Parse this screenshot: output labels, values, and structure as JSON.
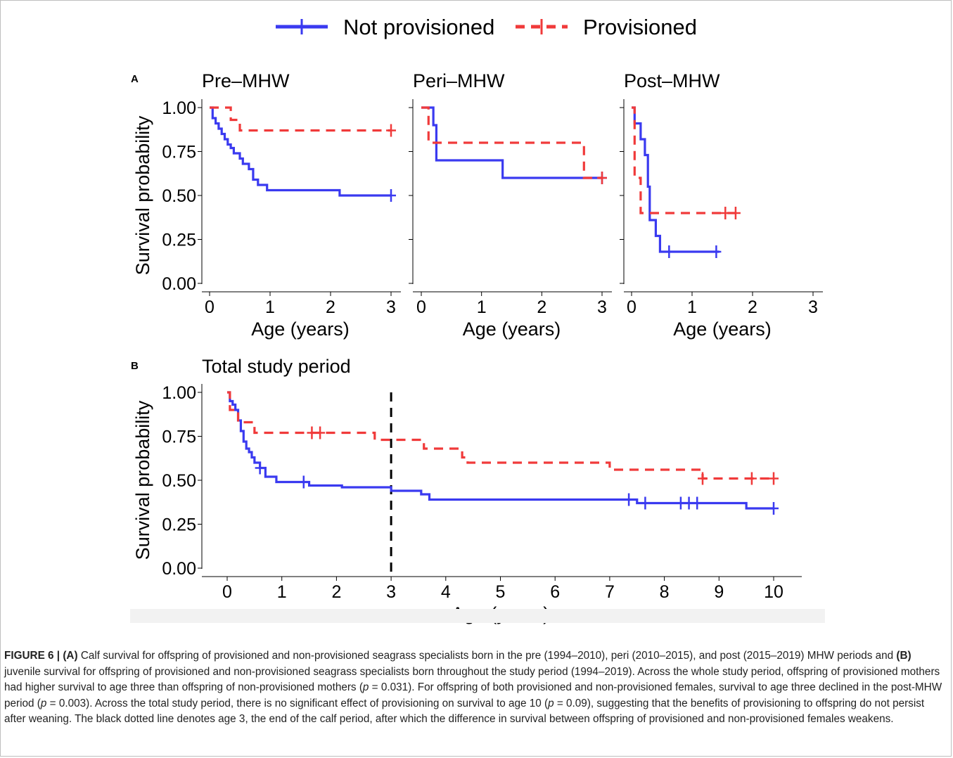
{
  "legend": {
    "items": [
      {
        "label": "Not provisioned",
        "color": "#3a3af0",
        "dash": "solid"
      },
      {
        "label": "Provisioned",
        "color": "#f03a3a",
        "dash": "dashed"
      }
    ]
  },
  "panel_a_label": "A",
  "panel_b_label": "B",
  "chart_data": [
    {
      "type": "line",
      "subtype": "kaplan-meier",
      "title": "Pre–MHW",
      "xlabel": "Age (years)",
      "ylabel": "Survival probability",
      "xlim": [
        0,
        3
      ],
      "ylim": [
        0,
        1
      ],
      "xticks": [
        "0",
        "1",
        "2",
        "3"
      ],
      "yticks": [
        "0.00",
        "0.25",
        "0.50",
        "0.75",
        "1.00"
      ],
      "series": [
        {
          "name": "Not provisioned",
          "x": [
            0,
            0.05,
            0.1,
            0.15,
            0.2,
            0.25,
            0.3,
            0.35,
            0.4,
            0.5,
            0.55,
            0.65,
            0.72,
            0.8,
            0.95,
            2.15,
            3.0
          ],
          "y": [
            1.0,
            0.94,
            0.91,
            0.88,
            0.85,
            0.82,
            0.79,
            0.77,
            0.74,
            0.71,
            0.68,
            0.65,
            0.59,
            0.56,
            0.53,
            0.5,
            0.5
          ],
          "censored": [
            3.0
          ]
        },
        {
          "name": "Provisioned",
          "x": [
            0,
            0.35,
            0.5,
            3.0
          ],
          "y": [
            1.0,
            0.93,
            0.87,
            0.87
          ],
          "censored": [
            3.0
          ]
        }
      ]
    },
    {
      "type": "line",
      "subtype": "kaplan-meier",
      "title": "Peri–MHW",
      "xlabel": "Age (years)",
      "ylabel": "",
      "xlim": [
        0,
        3
      ],
      "ylim": [
        0,
        1
      ],
      "xticks": [
        "0",
        "1",
        "2",
        "3"
      ],
      "series": [
        {
          "name": "Not provisioned",
          "x": [
            0,
            0.2,
            0.25,
            1.35,
            3.0
          ],
          "y": [
            1.0,
            0.9,
            0.7,
            0.6,
            0.6
          ],
          "censored": [
            3.0
          ]
        },
        {
          "name": "Provisioned",
          "x": [
            0,
            0.12,
            2.7,
            3.0
          ],
          "y": [
            1.0,
            0.8,
            0.6,
            0.6
          ],
          "censored": [
            3.0
          ]
        }
      ]
    },
    {
      "type": "line",
      "subtype": "kaplan-meier",
      "title": "Post–MHW",
      "xlabel": "Age (years)",
      "ylabel": "",
      "xlim": [
        0,
        3
      ],
      "ylim": [
        0,
        1
      ],
      "xticks": [
        "0",
        "1",
        "2",
        "3"
      ],
      "series": [
        {
          "name": "Not provisioned",
          "x": [
            0,
            0.05,
            0.15,
            0.22,
            0.27,
            0.3,
            0.4,
            0.47,
            1.45
          ],
          "y": [
            1.0,
            0.91,
            0.82,
            0.73,
            0.55,
            0.36,
            0.27,
            0.18,
            0.18
          ],
          "censored": [
            0.62,
            1.4
          ]
        },
        {
          "name": "Provisioned",
          "x": [
            0,
            0.05,
            0.15,
            1.75
          ],
          "y": [
            1.0,
            0.6,
            0.4,
            0.4
          ],
          "censored": [
            1.55,
            1.72
          ]
        }
      ]
    },
    {
      "type": "line",
      "subtype": "kaplan-meier",
      "title": "Total study period",
      "xlabel": "Age (years)",
      "ylabel": "Survival probability",
      "xlim": [
        0,
        10
      ],
      "ylim": [
        0,
        1
      ],
      "xticks": [
        "0",
        "1",
        "2",
        "3",
        "4",
        "5",
        "6",
        "7",
        "8",
        "9",
        "10"
      ],
      "yticks": [
        "0.00",
        "0.25",
        "0.50",
        "0.75",
        "1.00"
      ],
      "vline": {
        "x": 3,
        "style": "dashed",
        "color": "#000000"
      },
      "series": [
        {
          "name": "Not provisioned",
          "x": [
            0,
            0.05,
            0.1,
            0.15,
            0.2,
            0.25,
            0.3,
            0.35,
            0.4,
            0.45,
            0.5,
            0.6,
            0.7,
            0.9,
            1.5,
            2.1,
            3.0,
            3.55,
            3.7,
            7.5,
            9.5,
            10.0
          ],
          "y": [
            1.0,
            0.95,
            0.93,
            0.9,
            0.84,
            0.78,
            0.72,
            0.68,
            0.66,
            0.63,
            0.6,
            0.57,
            0.52,
            0.49,
            0.47,
            0.46,
            0.44,
            0.42,
            0.39,
            0.37,
            0.34,
            0.34
          ],
          "censored": [
            0.6,
            1.4,
            7.35,
            7.65,
            8.3,
            8.45,
            8.6,
            10.0
          ]
        },
        {
          "name": "Provisioned",
          "x": [
            0,
            0.05,
            0.2,
            0.5,
            2.0,
            2.7,
            3.0,
            3.6,
            4.3,
            4.4,
            7.0,
            8.7,
            10.0
          ],
          "y": [
            1.0,
            0.9,
            0.83,
            0.77,
            0.77,
            0.73,
            0.73,
            0.68,
            0.63,
            0.6,
            0.56,
            0.51,
            0.51
          ],
          "censored": [
            1.55,
            1.7,
            8.7,
            9.6,
            10.0
          ]
        }
      ]
    }
  ],
  "caption": {
    "fig_label": "FIGURE 6 | ",
    "a_label": "(A)",
    "text1": " Calf survival for offspring of provisioned and non-provisioned seagrass specialists born in the pre (1994–2010), peri (2010–2015), and post (2015–2019) MHW periods and ",
    "b_label": "(B)",
    "text2": " juvenile survival for offspring of provisioned and non-provisioned seagrass specialists born throughout the study period (1994–2019). Across the whole study period, offspring of provisioned mothers had higher survival to age three than offspring of non-provisioned mothers (",
    "p1": "p",
    "text3": " = 0.031). For offspring of both provisioned and non-provisioned females, survival to age three declined in the post-MHW period (",
    "p2": "p",
    "text4": " = 0.003). Across the total study period, there is no significant effect of provisioning on survival to age 10 (",
    "p3": "p",
    "text5": " = 0.09), suggesting that the benefits of provisioning to offspring do not persist after weaning. The black dotted line denotes age 3, the end of the calf period, after which the difference in survival between offspring of provisioned and non-provisioned females weakens."
  }
}
